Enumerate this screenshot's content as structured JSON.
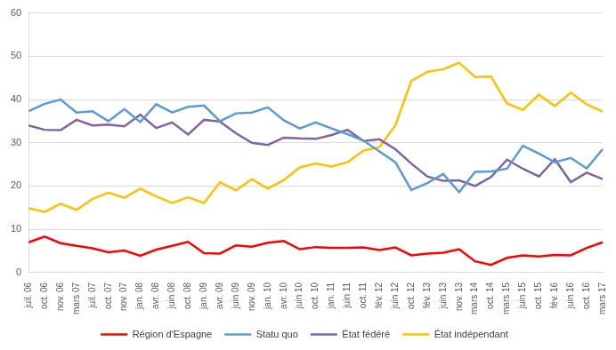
{
  "chart_data": {
    "type": "line",
    "categories": [
      "juil. 06",
      "oct. 06",
      "nov. 06",
      "mars 07",
      "juil. 07",
      "oct. 07",
      "nov. 07",
      "jan. 08",
      "avr. 08",
      "juin 08",
      "oct. 08",
      "jan. 09",
      "avr. 09",
      "juin 09",
      "nov. 09",
      "jan. 10",
      "avr. 10",
      "juin 10",
      "oct. 10",
      "jan. 11",
      "juin 11",
      "oct. 11",
      "fév. 12",
      "juin 12",
      "oct. 12",
      "fév. 13",
      "juin 13",
      "nov. 13",
      "mars 14",
      "oct. 14",
      "mars 15",
      "juin 15",
      "oct. 15",
      "fév. 16",
      "juin 16",
      "oct. 16",
      "mars 17"
    ],
    "series": [
      {
        "name": "Région d'Espagne",
        "color": "#ff0000",
        "values": [
          7,
          8.3,
          6.8,
          6.2,
          5.6,
          4.7,
          5.1,
          3.9,
          5.3,
          6.2,
          7.1,
          4.5,
          4.4,
          6.3,
          6,
          6.9,
          7.3,
          5.4,
          5.9,
          5.7,
          5.7,
          5.8,
          5.2,
          5.8,
          4,
          4.4,
          4.6,
          5.4,
          2.6,
          1.8,
          3.4,
          4,
          3.7,
          4.1,
          4,
          5.7,
          7
        ]
      },
      {
        "name": "Statu quo",
        "color": "#5b9bd5",
        "values": [
          37.3,
          39,
          40,
          37,
          37.3,
          35,
          37.8,
          34.8,
          38.9,
          37,
          38.3,
          38.6,
          35,
          36.8,
          37,
          38.2,
          35.2,
          33.3,
          34.7,
          33.3,
          32,
          30.5,
          28,
          25.5,
          19.1,
          20.7,
          22.8,
          18.6,
          23.3,
          23.4,
          24,
          29.3,
          27.5,
          25.5,
          26.5,
          24.1,
          28.5
        ]
      },
      {
        "name": "État fédéré",
        "color": "#8064a2",
        "values": [
          34,
          33,
          32.9,
          35.3,
          34,
          34.2,
          33.8,
          36.5,
          33.4,
          34.7,
          31.9,
          35.3,
          34.9,
          32.2,
          30,
          29.5,
          31.2,
          31,
          30.9,
          31.8,
          33,
          30.4,
          30.8,
          28.5,
          25.2,
          22.2,
          21.2,
          21.3,
          20,
          22.1,
          26.1,
          24,
          22.2,
          26.2,
          20.9,
          23.1,
          21.6
        ]
      },
      {
        "name": "État indépendant",
        "color": "#ffc000",
        "values": [
          14.9,
          14,
          15.9,
          14.5,
          17,
          18.5,
          17.3,
          19.4,
          17.6,
          16.1,
          17.4,
          16.1,
          20.9,
          19,
          21.6,
          19.4,
          21.4,
          24.3,
          25.2,
          24.5,
          25.5,
          28.2,
          29,
          34,
          44.3,
          46.4,
          47,
          48.5,
          45.2,
          45.3,
          39.1,
          37.6,
          41.1,
          38.5,
          41.6,
          38.9,
          37.2
        ]
      }
    ],
    "ylim": [
      0,
      60
    ],
    "yticks": [
      0,
      10,
      20,
      30,
      40,
      50,
      60
    ],
    "grid": true,
    "legend": "bottom"
  }
}
